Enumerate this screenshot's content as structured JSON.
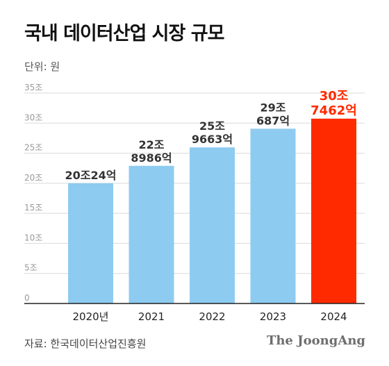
{
  "title": "국내 데이터산업 시장 규모",
  "unit_label": "단위: 원",
  "source": "자료: 한국데이터산업진흥원",
  "logo": "The JoongAng",
  "colors": {
    "bar": "#8ecbf0",
    "highlight": "#ff2a00",
    "label": "#333333"
  },
  "chart_data": {
    "type": "bar",
    "categories": [
      "2020년",
      "2021",
      "2022",
      "2023",
      "2024"
    ],
    "values": [
      20.0024,
      22.8986,
      25.9663,
      29.0687,
      30.7462
    ],
    "data_labels": [
      [
        "20조24억"
      ],
      [
        "22조",
        "8986억"
      ],
      [
        "25조",
        "9663억"
      ],
      [
        "29조",
        "687억"
      ],
      [
        "30조",
        "7462억"
      ]
    ],
    "highlight_index": 4,
    "ylim": [
      0,
      35
    ],
    "yticks": [
      0,
      5,
      10,
      15,
      20,
      25,
      30,
      35
    ],
    "ytick_labels": [
      "0",
      "5조",
      "10조",
      "15조",
      "20조",
      "25조",
      "30조",
      "35조"
    ],
    "grid": true,
    "xlabel": "",
    "ylabel": ""
  }
}
